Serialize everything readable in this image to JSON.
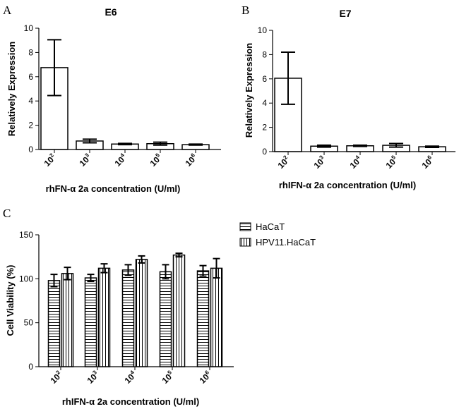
{
  "chart_data": [
    {
      "type": "bar",
      "panel_label": "A",
      "title": "E6",
      "ylabel": "Relatively Expression",
      "xlabel": "rhFN-α  2a concentration (U/ml)",
      "ylim": [
        0,
        10
      ],
      "yticks": [
        0,
        2,
        4,
        6,
        8,
        10
      ],
      "categories": [
        {
          "base": "10",
          "exp": "2"
        },
        {
          "base": "10",
          "exp": "3"
        },
        {
          "base": "10",
          "exp": "4"
        },
        {
          "base": "10",
          "exp": "5"
        },
        {
          "base": "10",
          "exp": "6"
        }
      ],
      "values": [
        6.75,
        0.7,
        0.45,
        0.48,
        0.4
      ],
      "errors": [
        2.3,
        0.15,
        0.05,
        0.12,
        0.04
      ],
      "bar_fill": "#ffffff"
    },
    {
      "type": "bar",
      "panel_label": "B",
      "title": "E7",
      "ylabel": "Relatively Expression",
      "xlabel": "rhIFN-α  2a concentration (U/ml)",
      "ylim": [
        0,
        10
      ],
      "yticks": [
        0,
        2,
        4,
        6,
        8,
        10
      ],
      "categories": [
        {
          "base": "10",
          "exp": "2"
        },
        {
          "base": "10",
          "exp": "3"
        },
        {
          "base": "10",
          "exp": "4"
        },
        {
          "base": "10",
          "exp": "5"
        },
        {
          "base": "10",
          "exp": "6"
        }
      ],
      "values": [
        6.05,
        0.45,
        0.48,
        0.52,
        0.4
      ],
      "errors": [
        2.15,
        0.08,
        0.05,
        0.15,
        0.05
      ],
      "bar_fill": "#ffffff"
    },
    {
      "type": "bar",
      "panel_label": "C",
      "title": "",
      "ylabel": "Cell Viability (%)",
      "xlabel": "rhIFN-α  2a concentration (U/ml)",
      "ylim": [
        0,
        150
      ],
      "yticks": [
        0,
        50,
        100,
        150
      ],
      "categories": [
        {
          "base": "10",
          "exp": "2"
        },
        {
          "base": "10",
          "exp": "3"
        },
        {
          "base": "10",
          "exp": "4"
        },
        {
          "base": "10",
          "exp": "5"
        },
        {
          "base": "10",
          "exp": "6"
        }
      ],
      "series": [
        {
          "name": "HaCaT",
          "pattern": "horizontal-stripes",
          "values": [
            98,
            101,
            110,
            108,
            109
          ],
          "errors": [
            7,
            4,
            6,
            8,
            6
          ]
        },
        {
          "name": "HPV11.HaCaT",
          "pattern": "vertical-stripes",
          "values": [
            106,
            112,
            122,
            127,
            112
          ],
          "errors": [
            7,
            5,
            4,
            2,
            11
          ]
        }
      ],
      "legend_position": "right"
    }
  ]
}
